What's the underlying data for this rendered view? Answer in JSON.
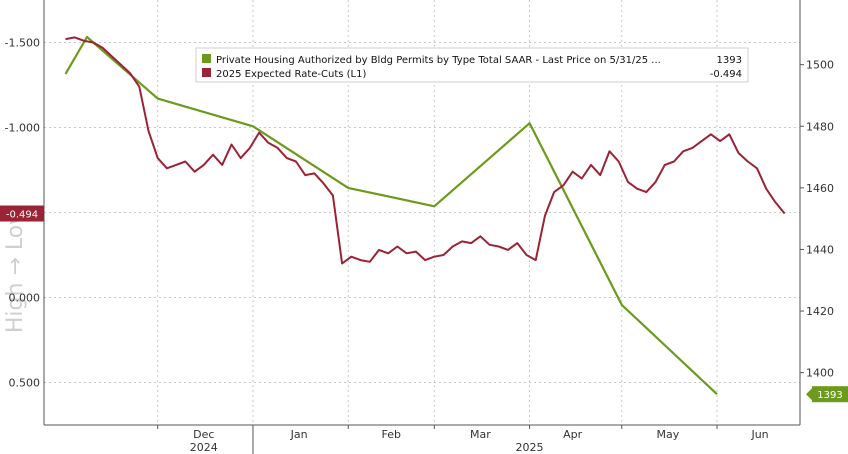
{
  "chart_data": {
    "type": "line",
    "watermark": "High → Low",
    "x_month_labels": [
      "Dec",
      "Jan",
      "Feb",
      "Mar",
      "Apr",
      "May",
      "Jun"
    ],
    "x_year_labels": [
      "2024",
      "2025"
    ],
    "left_axis": {
      "ticks": [
        "-1.500",
        "-1.000",
        "-0.500",
        "0.000",
        "0.500"
      ],
      "ylim": [
        -1.75,
        0.75
      ],
      "inverted": true
    },
    "right_axis": {
      "ticks": [
        "1500",
        "1480",
        "1460",
        "1440",
        "1420",
        "1400"
      ],
      "ylim": [
        1383,
        1521
      ]
    },
    "legend": [
      {
        "label": "Private Housing Authorized by Bldg Permits by Type Total SAAR - Last Price on 5/31/25 ...",
        "value": "1393",
        "color": "#6b9a1c"
      },
      {
        "label": "2025 Expected Rate-Cuts (L1)",
        "value": "-0.494",
        "color": "#9b2335"
      }
    ],
    "series": [
      {
        "name": "Private Housing Authorized by Bldg Permits by Type Total SAAR - Last Price on 5/31/25 ...",
        "axis": "right",
        "color": "#6b9a1c",
        "last_value": "1393",
        "x": [
          "2024-11-01",
          "2024-11-08",
          "2024-12-01",
          "2025-01-01",
          "2025-02-01",
          "2025-03-01",
          "2025-04-01",
          "2025-05-01",
          "2025-06-01"
        ],
        "y": [
          1497,
          1509,
          1489,
          1480,
          1460,
          1454,
          1481,
          1422,
          1393
        ]
      },
      {
        "name": "2025 Expected Rate-Cuts (L1)",
        "axis": "left",
        "color": "#9b2335",
        "last_value": "-0.494",
        "x": [
          "2024-11-01",
          "2024-11-04",
          "2024-11-07",
          "2024-11-10",
          "2024-11-13",
          "2024-11-16",
          "2024-11-19",
          "2024-11-22",
          "2024-11-25",
          "2024-11-28",
          "2024-12-01",
          "2024-12-04",
          "2024-12-07",
          "2024-12-10",
          "2024-12-13",
          "2024-12-16",
          "2024-12-19",
          "2024-12-22",
          "2024-12-25",
          "2024-12-28",
          "2024-12-31",
          "2025-01-03",
          "2025-01-06",
          "2025-01-09",
          "2025-01-12",
          "2025-01-15",
          "2025-01-18",
          "2025-01-21",
          "2025-01-24",
          "2025-01-27",
          "2025-01-30",
          "2025-02-02",
          "2025-02-05",
          "2025-02-08",
          "2025-02-11",
          "2025-02-14",
          "2025-02-17",
          "2025-02-20",
          "2025-02-23",
          "2025-02-26",
          "2025-03-01",
          "2025-03-04",
          "2025-03-07",
          "2025-03-10",
          "2025-03-13",
          "2025-03-16",
          "2025-03-19",
          "2025-03-22",
          "2025-03-25",
          "2025-03-28",
          "2025-03-31",
          "2025-04-03",
          "2025-04-06",
          "2025-04-09",
          "2025-04-12",
          "2025-04-15",
          "2025-04-18",
          "2025-04-21",
          "2025-04-24",
          "2025-04-27",
          "2025-04-30",
          "2025-05-03",
          "2025-05-06",
          "2025-05-09",
          "2025-05-12",
          "2025-05-15",
          "2025-05-18",
          "2025-05-21",
          "2025-05-24",
          "2025-05-27",
          "2025-05-30",
          "2025-06-02",
          "2025-06-05",
          "2025-06-08",
          "2025-06-11",
          "2025-06-14",
          "2025-06-17",
          "2025-06-20",
          "2025-06-23"
        ],
        "y": [
          -1.52,
          -1.53,
          -1.51,
          -1.5,
          -1.47,
          -1.42,
          -1.37,
          -1.32,
          -1.24,
          -0.98,
          -0.82,
          -0.76,
          -0.78,
          -0.8,
          -0.74,
          -0.78,
          -0.84,
          -0.78,
          -0.9,
          -0.82,
          -0.88,
          -0.97,
          -0.91,
          -0.88,
          -0.82,
          -0.8,
          -0.72,
          -0.73,
          -0.67,
          -0.6,
          -0.2,
          -0.24,
          -0.22,
          -0.21,
          -0.28,
          -0.26,
          -0.3,
          -0.26,
          -0.27,
          -0.22,
          -0.24,
          -0.25,
          -0.3,
          -0.33,
          -0.32,
          -0.36,
          -0.31,
          -0.3,
          -0.28,
          -0.32,
          -0.25,
          -0.22,
          -0.48,
          -0.62,
          -0.66,
          -0.74,
          -0.7,
          -0.78,
          -0.72,
          -0.86,
          -0.8,
          -0.68,
          -0.64,
          -0.62,
          -0.68,
          -0.78,
          -0.8,
          -0.86,
          -0.88,
          -0.92,
          -0.96,
          -0.92,
          -0.96,
          -0.85,
          -0.8,
          -0.76,
          -0.64,
          -0.56,
          -0.494
        ]
      }
    ],
    "grid": true
  }
}
